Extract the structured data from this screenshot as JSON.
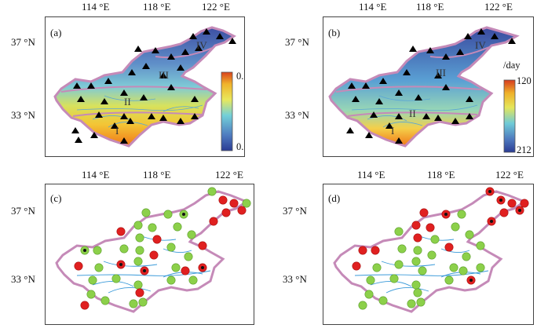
{
  "axes": {
    "x_ticks": [
      "114 °E",
      "118 °E",
      "122 °E"
    ],
    "y_ticks": [
      "37 °N",
      "33 °N"
    ]
  },
  "panels": [
    {
      "tag": "(a)",
      "regions": [
        "I",
        "II",
        "III",
        "IV"
      ],
      "colorbar": {
        "top": "0.34",
        "bottom": "0.63",
        "unit": ""
      }
    },
    {
      "tag": "(b)",
      "regions": [
        "I",
        "II",
        "III",
        "IV"
      ],
      "colorbar": {
        "top": "120",
        "bottom": "212",
        "unit": "/day"
      }
    },
    {
      "tag": "(c)"
    },
    {
      "tag": "(d)"
    }
  ],
  "colors": {
    "boundary": "#c58ab8",
    "river": "#3a9ad9",
    "station_marker": "#000000",
    "green_marker": "#8cd04a",
    "red_marker": "#e02020"
  },
  "marker_legend_semantics": {
    "triangle": "station",
    "green_circle": "category-1",
    "red_circle": "category-2",
    "dotted_circle": "significant"
  }
}
